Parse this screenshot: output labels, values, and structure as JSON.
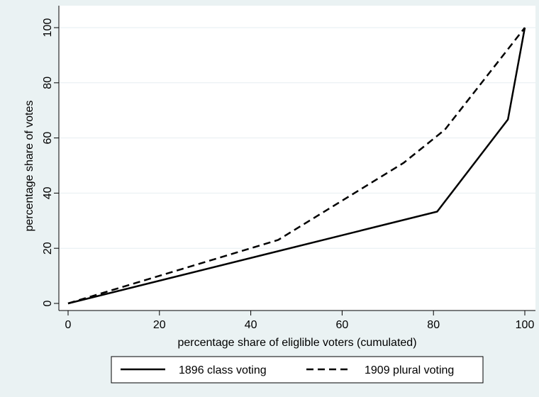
{
  "chart_data": {
    "type": "line",
    "title": "",
    "xlabel": "percentage share of eliglible voters (cumulated)",
    "ylabel": "percentage share of votes",
    "xlim": [
      0,
      100
    ],
    "ylim": [
      0,
      100
    ],
    "xticks": [
      0,
      20,
      40,
      60,
      80,
      100
    ],
    "yticks": [
      0,
      20,
      40,
      60,
      80,
      100
    ],
    "grid": "horizontal",
    "legend_position": "bottom",
    "series": [
      {
        "name": "1896 class voting",
        "style": "solid",
        "color": "#000000",
        "points": [
          [
            0,
            0
          ],
          [
            80.8,
            33.3
          ],
          [
            96.3,
            66.7
          ],
          [
            100,
            100
          ]
        ]
      },
      {
        "name": "1909 plural voting",
        "style": "dashed",
        "color": "#000000",
        "points": [
          [
            0,
            0
          ],
          [
            46,
            23
          ],
          [
            73.5,
            51
          ],
          [
            82.5,
            63
          ],
          [
            100,
            100
          ]
        ]
      }
    ]
  }
}
